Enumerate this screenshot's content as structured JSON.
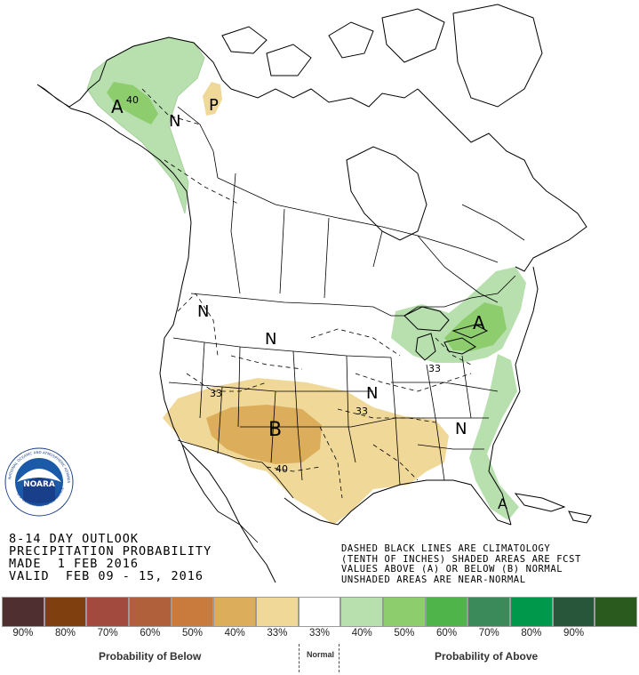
{
  "title": {
    "line1": "8-14 DAY OUTLOOK",
    "line2": "PRECIPITATION PROBABILITY",
    "line3": "MADE  1 FEB 2016",
    "line4": "VALID  FEB 09 - 15, 2016"
  },
  "notes": {
    "line1": "DASHED BLACK LINES ARE CLIMATOLOGY",
    "line2": "(TENTH OF INCHES) SHADED AREAS ARE FCST",
    "line3": "VALUES ABOVE (A) OR BELOW (B) NORMAL",
    "line4": "UNSHADED AREAS ARE NEAR-NORMAL"
  },
  "logo": {
    "text": "NOARA",
    "ring_text": "NATIONAL OCEANIC AND ATMOSPHERIC ADMINISTRATION",
    "ring_text_bottom": "U.S. DEPARTMENT OF COMMERCE"
  },
  "map_labels": {
    "alaska_a": "A",
    "alaska_40": "40",
    "yukon_n": "N",
    "yukon_p": "P",
    "northwest_n": "N",
    "plains_n": "N",
    "midwest_n": "N",
    "southeast_n": "N",
    "southwest_b": "B",
    "northeast_a": "A",
    "florida_a": "A",
    "contour_33_west": "33",
    "contour_33_plains": "33",
    "contour_40_texas": "40",
    "contour_33_ohio": "33"
  },
  "legend": {
    "swatches": [
      {
        "color": "#4f2f2f",
        "label": "90%"
      },
      {
        "color": "#7f3f0f",
        "label": "80%"
      },
      {
        "color": "#a14a3d",
        "label": "70%"
      },
      {
        "color": "#b0603a",
        "label": "60%"
      },
      {
        "color": "#c97b3e",
        "label": "50%"
      },
      {
        "color": "#dcae5c",
        "label": "40%"
      },
      {
        "color": "#f0d898",
        "label": "33%"
      },
      {
        "color": "#ffffff",
        "label": "33%"
      },
      {
        "color": "#b8e0ae",
        "label": "40%"
      },
      {
        "color": "#8dcd6e",
        "label": "50%"
      },
      {
        "color": "#4fb44a",
        "label": "60%"
      },
      {
        "color": "#3a8a5a",
        "label": "70%"
      },
      {
        "color": "#00984a",
        "label": "80%"
      },
      {
        "color": "#28563a",
        "label": "90%"
      },
      {
        "color": "#2a5a1e",
        "label": ""
      }
    ],
    "below_label": "Probability of Below",
    "normal_label": "Normal",
    "above_label": "Probability of Above"
  },
  "colors": {
    "below_33": "#f0d898",
    "below_40": "#dcae5c",
    "above_33": "#b8e0ae",
    "above_40": "#8dcd6e"
  }
}
